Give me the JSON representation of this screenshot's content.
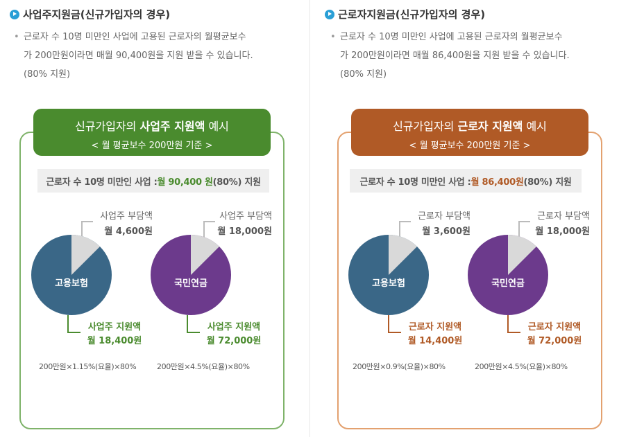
{
  "colors": {
    "green": "#4a8b2e",
    "orange": "#b05a26",
    "blue_pie": "#3a6787",
    "purple_pie": "#6c3a8c",
    "slice": "#d9d9d9",
    "green_border": "#7fb36a",
    "orange_border": "#e3a16f"
  },
  "left": {
    "title": "사업주지원금(신규가입자의 경우)",
    "desc_line1": "근로자 수 10명 미만인 사업에 고용된 근로자의 월평균보수",
    "desc_line2": "가 200만원이라면 매월 90,400원을 지원 받을 수 있습니다.",
    "desc_line3": "(80% 지원)",
    "banner_pre": "신규가입자의 ",
    "banner_bold": "사업주 지원액",
    "banner_post": " 예시",
    "banner_sub": "< 월 평균보수 200만원 기준 >",
    "summary_pre": "근로자 수 10명 미만인 사업 : ",
    "summary_amt": "월 90,400 원",
    "summary_post": "(80%) 지원",
    "pie1": {
      "label": "고용보험",
      "burden_label": "사업주 부담액",
      "burden_amt": "월 4,600원",
      "support_label": "사업주 지원액",
      "support_amt": "월 18,400원",
      "formula": "200만원×1.15%(요율)×80%"
    },
    "pie2": {
      "label": "국민연금",
      "burden_label": "사업주 부담액",
      "burden_amt": "월 18,000원",
      "support_label": "사업주 지원액",
      "support_amt": "월 72,000원",
      "formula": "200만원×4.5%(요율)×80%"
    }
  },
  "right": {
    "title": "근로자지원금(신규가입자의 경우)",
    "desc_line1": "근로자 수 10명 미만인 사업에 고용된 근로자의 월평균보수",
    "desc_line2": "가 200만원이라면 매월 86,400원을 지원 받을 수 있습니다.",
    "desc_line3": "(80% 지원)",
    "banner_pre": "신규가입자의 ",
    "banner_bold": "근로자 지원액",
    "banner_post": " 예시",
    "banner_sub": "< 월 평균보수 200만원 기준 >",
    "summary_pre": "근로자 수 10명 미만인 사업 : ",
    "summary_amt": "월 86,400원",
    "summary_post": "(80%) 지원",
    "pie1": {
      "label": "고용보험",
      "burden_label": "근로자 부담액",
      "burden_amt": "월 3,600원",
      "support_label": "근로자 지원액",
      "support_amt": "월 14,400원",
      "formula": "200만원×0.9%(요율)×80%"
    },
    "pie2": {
      "label": "국민연금",
      "burden_label": "근로자 부담액",
      "burden_amt": "월 18,000원",
      "support_label": "근로자 지원액",
      "support_amt": "월 72,000원",
      "formula": "200만원×4.5%(요율)×80%"
    }
  }
}
